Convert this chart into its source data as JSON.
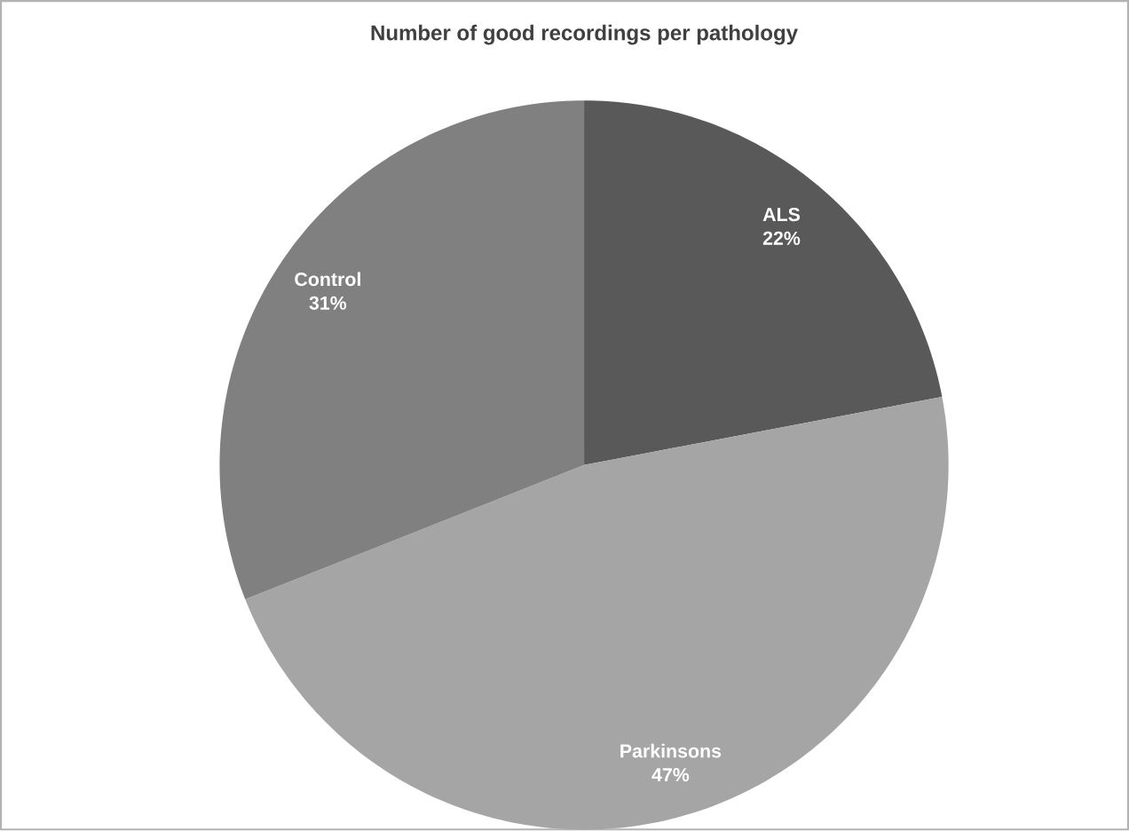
{
  "chart_data": {
    "type": "pie",
    "title": "Number of good recordings per pathology",
    "categories": [
      "ALS",
      "Parkinsons",
      "Control"
    ],
    "values": [
      22,
      47,
      31
    ],
    "colors": [
      "#595959",
      "#a5a5a5",
      "#808080"
    ],
    "value_labels": [
      "22%",
      "47%",
      "31%"
    ]
  }
}
